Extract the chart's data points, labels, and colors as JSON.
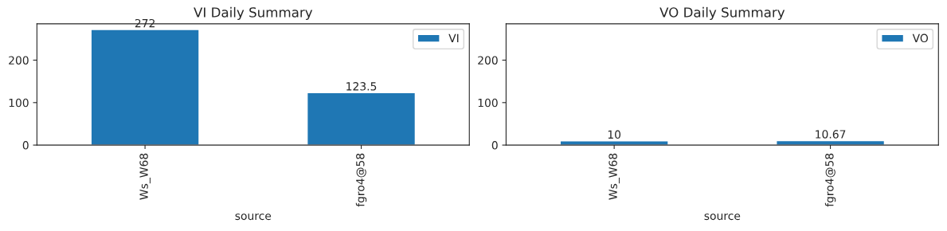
{
  "chart_data": [
    {
      "type": "bar",
      "title": "VI Daily Summary",
      "xlabel": "source",
      "categories": [
        "Ws_W68",
        "fgro4@58"
      ],
      "series": [
        {
          "name": "VI",
          "color": "#1f77b4",
          "values": [
            272,
            123.5
          ]
        }
      ],
      "ylim": [
        0,
        285.6
      ],
      "yticks": [
        0,
        100,
        200
      ],
      "data_labels": true,
      "legend": "top right",
      "grid": false
    },
    {
      "type": "bar",
      "title": "VO Daily Summary",
      "xlabel": "source",
      "categories": [
        "Ws_W68",
        "fgro4@58"
      ],
      "series": [
        {
          "name": "VO",
          "color": "#1f77b4",
          "values": [
            10,
            10.67
          ]
        }
      ],
      "ylim": [
        0,
        285.6
      ],
      "yticks": [
        0,
        100,
        200
      ],
      "data_labels": true,
      "legend": "top right",
      "grid": false
    }
  ]
}
